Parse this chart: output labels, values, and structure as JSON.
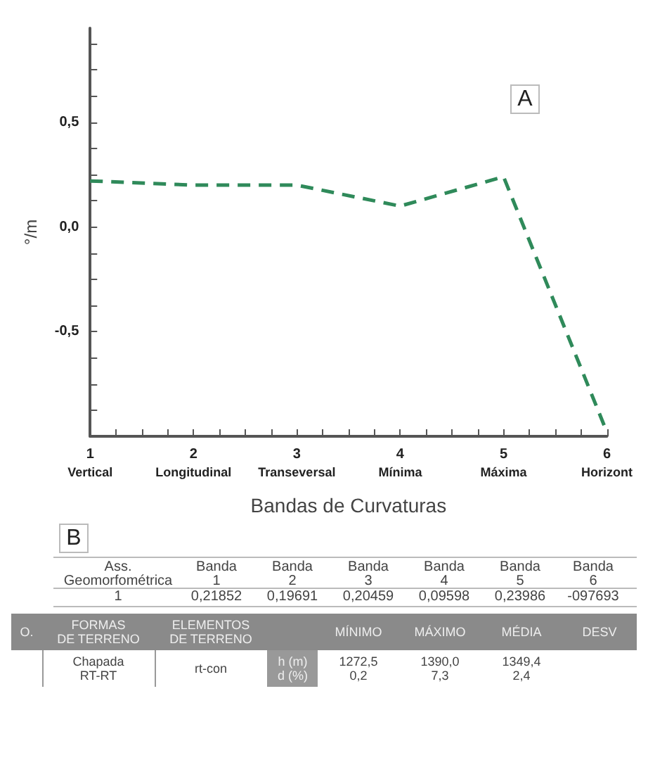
{
  "chart_data": [
    {
      "type": "line",
      "xlabel": "Bandas de Curvaturas",
      "ylabel": "°/m",
      "x": [
        1,
        2,
        3,
        4,
        5,
        6
      ],
      "series": [
        {
          "color": "#2f8a5a",
          "values": [
            0.22,
            0.2,
            0.2,
            0.1,
            0.24,
            -0.98
          ]
        }
      ],
      "xlim": [
        1,
        6
      ],
      "xticks": [
        {
          "value": 1,
          "label": "1\nVertical"
        },
        {
          "value": 1.25,
          "label": null
        },
        {
          "value": 1.5,
          "label": null
        },
        {
          "value": 1.75,
          "label": null
        },
        {
          "value": 2,
          "label": "2\nLongitudinal"
        },
        {
          "value": 2.25,
          "label": null
        },
        {
          "value": 2.5,
          "label": null
        },
        {
          "value": 2.75,
          "label": null
        },
        {
          "value": 3,
          "label": "3\nTranseversal"
        },
        {
          "value": 3.25,
          "label": null
        },
        {
          "value": 3.5,
          "label": null
        },
        {
          "value": 3.75,
          "label": null
        },
        {
          "value": 4,
          "label": "4\nMínima"
        },
        {
          "value": 4.25,
          "label": null
        },
        {
          "value": 4.5,
          "label": null
        },
        {
          "value": 4.75,
          "label": null
        },
        {
          "value": 5,
          "label": "5\nMáxima"
        },
        {
          "value": 5.25,
          "label": null
        },
        {
          "value": 5.5,
          "label": null
        },
        {
          "value": 5.75,
          "label": null
        },
        {
          "value": 6,
          "label": "6\nHorizont"
        }
      ],
      "ylim": [
        -1,
        0.95
      ],
      "yticks": [
        {
          "value": -0.875,
          "label": null
        },
        {
          "value": -0.75,
          "label": null
        },
        {
          "value": -0.625,
          "label": null
        },
        {
          "value": -0.5,
          "label": "-0,5"
        },
        {
          "value": -0.375,
          "label": null
        },
        {
          "value": -0.25,
          "label": null
        },
        {
          "value": -0.125,
          "label": null
        },
        {
          "value": 0,
          "label": "0,0"
        },
        {
          "value": 0.125,
          "label": null
        },
        {
          "value": 0.25,
          "label": null
        },
        {
          "value": 0.375,
          "label": null
        },
        {
          "value": 0.5,
          "label": "0,5"
        },
        {
          "value": 0.625,
          "label": null
        },
        {
          "value": 0.75,
          "label": null
        },
        {
          "value": 0.875,
          "label": null
        }
      ],
      "grid": false,
      "marker": "none",
      "line_style": "dashed",
      "annotations": [
        "A",
        "B",
        "Ass.\nGeomorfométrica",
        "Banda\n1",
        "Banda\n2",
        "Banda\n3",
        "Banda\n4",
        "Banda\n5",
        "Banda\n6",
        "1",
        "0,21852",
        "0,19691",
        "0,20459",
        "0,09598",
        "0,23986",
        "-097693"
      ]
    },
    {
      "type": "other",
      "categories": [
        "O.",
        "FORMAS\nDE TERRENO",
        "ELEMENTOS\nDE TERRENO",
        null,
        "MÍNIMO",
        "MÁXIMO",
        "MÉDIA",
        "DESV"
      ],
      "cell_labels": [
        [
          null,
          "Chapada\nRT-RT",
          "rt-con",
          "h (m)\nd (%)",
          "1272,5\n0,2",
          "1390,0\n7,3",
          "1349,4\n2,4",
          null
        ]
      ]
    }
  ]
}
